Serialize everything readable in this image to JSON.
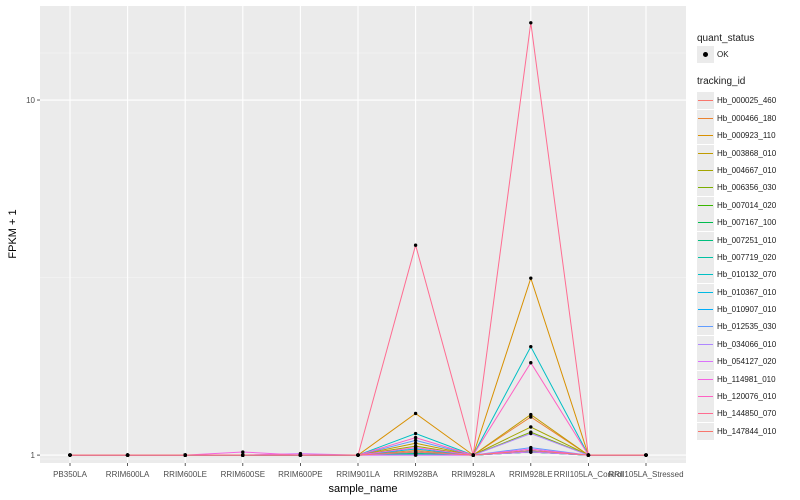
{
  "chart_data": {
    "type": "line",
    "title": "",
    "xlabel": "sample_name",
    "ylabel": "FPKM + 1",
    "y_scale": "log10",
    "ylim": [
      0.95,
      18.4
    ],
    "y_ticks": [
      1,
      10
    ],
    "y_tick_labels": [
      "1",
      "10"
    ],
    "categories": [
      "PB350LA",
      "RRIM600LA",
      "RRIM600LE",
      "RRIM600SE",
      "RRIM600PE",
      "RRIM901LA",
      "RRIM928BA",
      "RRIM928LA",
      "RRIM928LE",
      "RRII105LA_Control",
      "RRII105LA_Stressed"
    ],
    "legend_quant": {
      "title": "quant_status",
      "entries": [
        "OK"
      ]
    },
    "legend_tracking_title": "tracking_id",
    "series": [
      {
        "name": "Hb_000025_460",
        "color": "#F8766D",
        "values": [
          1,
          1,
          1,
          1,
          1,
          1,
          1.02,
          1,
          1.03,
          1,
          1
        ]
      },
      {
        "name": "Hb_000466_180",
        "color": "#EA8331",
        "values": [
          1,
          1,
          1,
          1,
          1,
          1,
          1.03,
          1,
          1.28,
          1,
          1
        ]
      },
      {
        "name": "Hb_000923_110",
        "color": "#D89000",
        "values": [
          1,
          1,
          1,
          1,
          1,
          1,
          1.31,
          1,
          3.15,
          1,
          1
        ]
      },
      {
        "name": "Hb_003868_010",
        "color": "#C09B00",
        "values": [
          1,
          1,
          1,
          1,
          1,
          1,
          1.08,
          1,
          1.3,
          1,
          1
        ]
      },
      {
        "name": "Hb_004667_010",
        "color": "#A3A500",
        "values": [
          1,
          1,
          1,
          1,
          1,
          1,
          1.06,
          1,
          1.2,
          1,
          1
        ]
      },
      {
        "name": "Hb_006356_030",
        "color": "#7CAE00",
        "values": [
          1,
          1,
          1,
          1,
          1,
          1,
          1.02,
          1,
          1.16,
          1,
          1
        ]
      },
      {
        "name": "Hb_007014_020",
        "color": "#39B600",
        "values": [
          1,
          1,
          1,
          1,
          1,
          1,
          1.01,
          1,
          1.02,
          1,
          1
        ]
      },
      {
        "name": "Hb_007167_100",
        "color": "#00BB4E",
        "values": [
          1,
          1,
          1,
          1,
          1,
          1,
          1.01,
          1,
          1.02,
          1,
          1
        ]
      },
      {
        "name": "Hb_007251_010",
        "color": "#00BF7D",
        "values": [
          1,
          1,
          1,
          1,
          1,
          1,
          1.01,
          1,
          1.02,
          1,
          1
        ]
      },
      {
        "name": "Hb_007719_020",
        "color": "#00C1A3",
        "values": [
          1,
          1,
          1,
          1,
          1,
          1,
          1.01,
          1,
          1.02,
          1,
          1
        ]
      },
      {
        "name": "Hb_010132_070",
        "color": "#00BFC4",
        "values": [
          1,
          1,
          1,
          1,
          1,
          1,
          1.15,
          1,
          2.02,
          1,
          1
        ]
      },
      {
        "name": "Hb_010367_010",
        "color": "#00B9E3",
        "values": [
          1,
          1,
          1,
          1,
          1,
          1,
          1.04,
          1,
          1.03,
          1,
          1
        ]
      },
      {
        "name": "Hb_010907_010",
        "color": "#00ADFA",
        "values": [
          1,
          1,
          1,
          1,
          1,
          1,
          1.02,
          1,
          1.03,
          1,
          1
        ]
      },
      {
        "name": "Hb_012535_030",
        "color": "#619CFF",
        "values": [
          1,
          1,
          1,
          1,
          1,
          1,
          1.1,
          1,
          1.05,
          1,
          1
        ]
      },
      {
        "name": "Hb_034066_010",
        "color": "#AE87FF",
        "values": [
          1,
          1,
          1,
          1,
          1,
          1,
          1.0,
          1,
          1.15,
          1,
          1
        ]
      },
      {
        "name": "Hb_054127_020",
        "color": "#DB72FB",
        "values": [
          1,
          1,
          1,
          1,
          1.01,
          1,
          1.0,
          1,
          1.02,
          1,
          1
        ]
      },
      {
        "name": "Hb_114981_010",
        "color": "#F564E3",
        "values": [
          1,
          1,
          1,
          1.02,
          1,
          1,
          1.05,
          1,
          1.04,
          1,
          1
        ]
      },
      {
        "name": "Hb_120076_010",
        "color": "#FF61C3",
        "values": [
          1,
          1,
          1,
          1,
          1,
          1,
          1.12,
          1,
          1.82,
          1,
          1
        ]
      },
      {
        "name": "Hb_144850_070",
        "color": "#FF6C91",
        "values": [
          1,
          1,
          1,
          1,
          1,
          1,
          3.9,
          1,
          16.5,
          1,
          1
        ]
      },
      {
        "name": "Hb_147844_010",
        "color": "#F8766D",
        "values": [
          1,
          1,
          1,
          1,
          1,
          1,
          1.02,
          1,
          1.03,
          1,
          1
        ]
      }
    ]
  }
}
